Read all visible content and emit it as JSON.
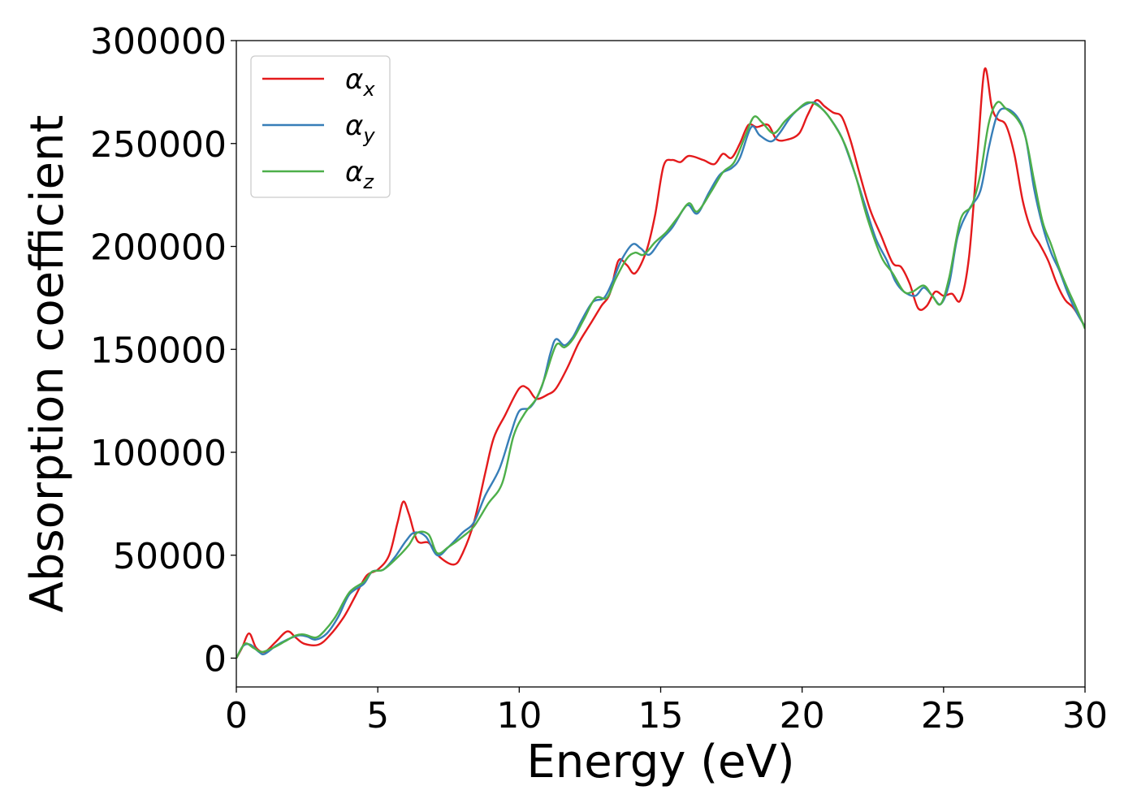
{
  "chart_data": {
    "type": "line",
    "title": "",
    "xlabel": "Energy (eV)",
    "ylabel": "Absorption coefficient",
    "xlim": [
      0,
      30
    ],
    "ylim": [
      -14000,
      300000
    ],
    "xticks": [
      0,
      5,
      10,
      15,
      20,
      25,
      30
    ],
    "xtick_labels": [
      "0",
      "5",
      "10",
      "15",
      "20",
      "25",
      "30"
    ],
    "yticks": [
      0,
      50000,
      100000,
      150000,
      200000,
      250000,
      300000
    ],
    "ytick_labels": [
      "0",
      "50000",
      "100000",
      "150000",
      "200000",
      "250000",
      "300000"
    ],
    "grid": false,
    "legend_position": "top-left",
    "series": [
      {
        "name": "αx",
        "symbol": "α",
        "subscript": "x",
        "color": "#e41a1c",
        "points": [
          [
            0,
            0
          ],
          [
            0.2,
            5000
          ],
          [
            0.45,
            12000
          ],
          [
            0.7,
            5000
          ],
          [
            1.0,
            3000
          ],
          [
            1.4,
            8000
          ],
          [
            1.8,
            13000
          ],
          [
            2.1,
            10000
          ],
          [
            2.4,
            7000
          ],
          [
            2.9,
            6500
          ],
          [
            3.3,
            11000
          ],
          [
            3.8,
            20000
          ],
          [
            4.2,
            30000
          ],
          [
            4.6,
            40000
          ],
          [
            5.0,
            43000
          ],
          [
            5.4,
            50000
          ],
          [
            5.7,
            66000
          ],
          [
            5.9,
            76000
          ],
          [
            6.1,
            70000
          ],
          [
            6.4,
            57000
          ],
          [
            6.8,
            56000
          ],
          [
            7.2,
            49000
          ],
          [
            7.7,
            45500
          ],
          [
            8.0,
            51000
          ],
          [
            8.4,
            66000
          ],
          [
            8.8,
            90000
          ],
          [
            9.1,
            107000
          ],
          [
            9.5,
            118000
          ],
          [
            10.0,
            131000
          ],
          [
            10.3,
            131000
          ],
          [
            10.6,
            126000
          ],
          [
            11.0,
            128000
          ],
          [
            11.3,
            131000
          ],
          [
            11.7,
            141000
          ],
          [
            12.1,
            153000
          ],
          [
            12.5,
            162000
          ],
          [
            12.9,
            171000
          ],
          [
            13.2,
            177000
          ],
          [
            13.5,
            193000
          ],
          [
            13.8,
            191000
          ],
          [
            14.1,
            187000
          ],
          [
            14.5,
            198000
          ],
          [
            14.8,
            215000
          ],
          [
            15.1,
            239000
          ],
          [
            15.4,
            242000
          ],
          [
            15.7,
            241000
          ],
          [
            16.0,
            244000
          ],
          [
            16.5,
            242000
          ],
          [
            16.9,
            240000
          ],
          [
            17.2,
            245000
          ],
          [
            17.5,
            243000
          ],
          [
            17.8,
            250000
          ],
          [
            18.1,
            259000
          ],
          [
            18.4,
            258000
          ],
          [
            18.8,
            259000
          ],
          [
            19.1,
            252000
          ],
          [
            19.5,
            252000
          ],
          [
            19.9,
            255000
          ],
          [
            20.2,
            264000
          ],
          [
            20.5,
            271000
          ],
          [
            20.8,
            268000
          ],
          [
            21.1,
            265000
          ],
          [
            21.4,
            263000
          ],
          [
            21.7,
            252000
          ],
          [
            22.0,
            237000
          ],
          [
            22.4,
            218000
          ],
          [
            22.8,
            205000
          ],
          [
            23.2,
            192000
          ],
          [
            23.5,
            190000
          ],
          [
            23.8,
            182000
          ],
          [
            24.1,
            170000
          ],
          [
            24.4,
            171000
          ],
          [
            24.7,
            178000
          ],
          [
            25.0,
            176000
          ],
          [
            25.3,
            177000
          ],
          [
            25.6,
            174000
          ],
          [
            25.9,
            195000
          ],
          [
            26.2,
            245000
          ],
          [
            26.45,
            286000
          ],
          [
            26.7,
            268000
          ],
          [
            26.9,
            262000
          ],
          [
            27.2,
            259000
          ],
          [
            27.5,
            245000
          ],
          [
            27.8,
            222000
          ],
          [
            28.1,
            208000
          ],
          [
            28.4,
            201000
          ],
          [
            28.7,
            193000
          ],
          [
            29.0,
            182000
          ],
          [
            29.3,
            174000
          ],
          [
            29.6,
            170000
          ],
          [
            30.0,
            161000
          ]
        ]
      },
      {
        "name": "αy",
        "symbol": "α",
        "subscript": "y",
        "color": "#377eb8",
        "points": [
          [
            0,
            0
          ],
          [
            0.25,
            6000
          ],
          [
            0.5,
            6500
          ],
          [
            0.8,
            3000
          ],
          [
            1.0,
            2000
          ],
          [
            1.4,
            6000
          ],
          [
            1.8,
            9000
          ],
          [
            2.2,
            11000
          ],
          [
            2.5,
            10500
          ],
          [
            2.8,
            9000
          ],
          [
            3.2,
            12000
          ],
          [
            3.6,
            20000
          ],
          [
            4.0,
            31000
          ],
          [
            4.5,
            36000
          ],
          [
            4.8,
            42000
          ],
          [
            5.2,
            43000
          ],
          [
            5.6,
            49000
          ],
          [
            6.0,
            57000
          ],
          [
            6.3,
            61000
          ],
          [
            6.7,
            59000
          ],
          [
            7.1,
            50000
          ],
          [
            7.5,
            54000
          ],
          [
            8.0,
            61000
          ],
          [
            8.4,
            66000
          ],
          [
            8.8,
            79000
          ],
          [
            9.3,
            92000
          ],
          [
            9.7,
            109000
          ],
          [
            10.0,
            120000
          ],
          [
            10.4,
            122000
          ],
          [
            10.8,
            132000
          ],
          [
            11.1,
            148000
          ],
          [
            11.3,
            155000
          ],
          [
            11.6,
            152000
          ],
          [
            11.9,
            156000
          ],
          [
            12.2,
            164000
          ],
          [
            12.6,
            173000
          ],
          [
            13.0,
            175000
          ],
          [
            13.3,
            183000
          ],
          [
            13.6,
            193000
          ],
          [
            14.0,
            201000
          ],
          [
            14.3,
            199000
          ],
          [
            14.6,
            196000
          ],
          [
            15.0,
            203000
          ],
          [
            15.4,
            209000
          ],
          [
            15.8,
            218000
          ],
          [
            16.0,
            220000
          ],
          [
            16.3,
            216000
          ],
          [
            16.7,
            226000
          ],
          [
            17.1,
            235000
          ],
          [
            17.5,
            238000
          ],
          [
            17.8,
            243000
          ],
          [
            18.2,
            258000
          ],
          [
            18.5,
            254000
          ],
          [
            18.9,
            251000
          ],
          [
            19.2,
            255000
          ],
          [
            19.6,
            263000
          ],
          [
            20.0,
            268000
          ],
          [
            20.4,
            270000
          ],
          [
            20.7,
            267000
          ],
          [
            21.0,
            262000
          ],
          [
            21.4,
            253000
          ],
          [
            21.8,
            238000
          ],
          [
            22.2,
            221000
          ],
          [
            22.6,
            204000
          ],
          [
            23.0,
            193000
          ],
          [
            23.3,
            183000
          ],
          [
            23.6,
            178000
          ],
          [
            24.0,
            176000
          ],
          [
            24.3,
            180000
          ],
          [
            24.6,
            176000
          ],
          [
            24.9,
            172000
          ],
          [
            25.2,
            182000
          ],
          [
            25.5,
            205000
          ],
          [
            25.9,
            218000
          ],
          [
            26.3,
            227000
          ],
          [
            26.6,
            248000
          ],
          [
            26.9,
            264000
          ],
          [
            27.2,
            267000
          ],
          [
            27.6,
            263000
          ],
          [
            27.9,
            253000
          ],
          [
            28.2,
            228000
          ],
          [
            28.5,
            210000
          ],
          [
            28.8,
            197000
          ],
          [
            29.1,
            188000
          ],
          [
            29.4,
            177000
          ],
          [
            29.7,
            168000
          ],
          [
            30.0,
            161000
          ]
        ]
      },
      {
        "name": "αz",
        "symbol": "α",
        "subscript": "z",
        "color": "#4daf4a",
        "points": [
          [
            0,
            0
          ],
          [
            0.3,
            7000
          ],
          [
            0.6,
            5000
          ],
          [
            0.9,
            3000
          ],
          [
            1.3,
            5000
          ],
          [
            1.7,
            8000
          ],
          [
            2.1,
            11000
          ],
          [
            2.4,
            11500
          ],
          [
            2.8,
            10000
          ],
          [
            3.1,
            13000
          ],
          [
            3.5,
            20000
          ],
          [
            4.0,
            32000
          ],
          [
            4.5,
            37000
          ],
          [
            4.8,
            42000
          ],
          [
            5.2,
            43000
          ],
          [
            5.7,
            49000
          ],
          [
            6.1,
            55000
          ],
          [
            6.4,
            61000
          ],
          [
            6.8,
            60000
          ],
          [
            7.1,
            51000
          ],
          [
            7.5,
            54000
          ],
          [
            8.0,
            59000
          ],
          [
            8.4,
            64000
          ],
          [
            8.9,
            75000
          ],
          [
            9.4,
            85000
          ],
          [
            9.8,
            108000
          ],
          [
            10.2,
            119000
          ],
          [
            10.6,
            126000
          ],
          [
            10.9,
            136000
          ],
          [
            11.3,
            152000
          ],
          [
            11.6,
            151000
          ],
          [
            11.9,
            155000
          ],
          [
            12.3,
            165000
          ],
          [
            12.7,
            175000
          ],
          [
            13.1,
            175000
          ],
          [
            13.4,
            184000
          ],
          [
            13.8,
            194000
          ],
          [
            14.1,
            197000
          ],
          [
            14.4,
            196000
          ],
          [
            14.8,
            202000
          ],
          [
            15.2,
            207000
          ],
          [
            15.6,
            214000
          ],
          [
            16.0,
            221000
          ],
          [
            16.3,
            217000
          ],
          [
            16.8,
            227000
          ],
          [
            17.2,
            236000
          ],
          [
            17.6,
            241000
          ],
          [
            18.0,
            254000
          ],
          [
            18.3,
            263000
          ],
          [
            18.6,
            260000
          ],
          [
            19.0,
            255000
          ],
          [
            19.4,
            261000
          ],
          [
            19.8,
            266000
          ],
          [
            20.2,
            270000
          ],
          [
            20.6,
            268000
          ],
          [
            21.0,
            262000
          ],
          [
            21.5,
            250000
          ],
          [
            21.9,
            234000
          ],
          [
            22.3,
            214000
          ],
          [
            22.8,
            195000
          ],
          [
            23.2,
            187000
          ],
          [
            23.6,
            178000
          ],
          [
            23.9,
            178000
          ],
          [
            24.3,
            181000
          ],
          [
            24.6,
            176000
          ],
          [
            24.9,
            172000
          ],
          [
            25.2,
            185000
          ],
          [
            25.6,
            213000
          ],
          [
            26.0,
            220000
          ],
          [
            26.3,
            235000
          ],
          [
            26.6,
            260000
          ],
          [
            26.9,
            270000
          ],
          [
            27.2,
            267000
          ],
          [
            27.6,
            262000
          ],
          [
            27.9,
            253000
          ],
          [
            28.2,
            232000
          ],
          [
            28.5,
            212000
          ],
          [
            28.8,
            201000
          ],
          [
            29.1,
            189000
          ],
          [
            29.4,
            179000
          ],
          [
            29.7,
            170000
          ],
          [
            30.0,
            160000
          ]
        ]
      }
    ]
  }
}
